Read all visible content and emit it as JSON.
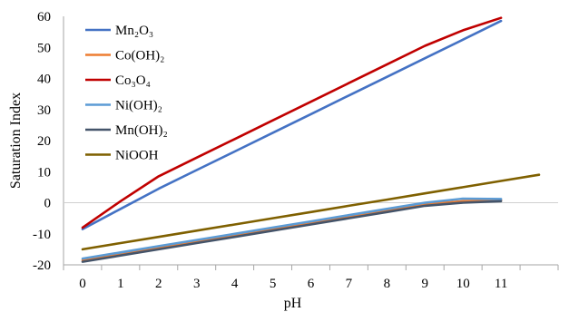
{
  "chart_data": {
    "type": "line",
    "title": "",
    "xlabel": "pH",
    "ylabel": "Saturation Index",
    "x_ticks": [
      "0",
      "1",
      "2",
      "3",
      "4",
      "5",
      "6",
      "7",
      "8",
      "9",
      "10",
      "11"
    ],
    "xlim": [
      -0.5,
      12.5
    ],
    "ylim": [
      -20,
      60
    ],
    "y_ticks": [
      "-20",
      "-10",
      "0",
      "10",
      "20",
      "30",
      "40",
      "50",
      "60"
    ],
    "grid": false,
    "legend_position": "top-left",
    "series": [
      {
        "name": "Mn₂O₃",
        "color": "#4472C4",
        "x": [
          0,
          1,
          2,
          3,
          4,
          5,
          6,
          7,
          8,
          9,
          10,
          11
        ],
        "y": [
          -8.5,
          -2,
          4.5,
          10.5,
          16.5,
          22.5,
          28.5,
          34.5,
          40.5,
          46.5,
          52.5,
          58.5
        ]
      },
      {
        "name": "Co(OH)₂",
        "color": "#ED7D31",
        "x": [
          0,
          1,
          2,
          3,
          4,
          5,
          6,
          7,
          8,
          9,
          10,
          11
        ],
        "y": [
          -18.5,
          -16.5,
          -14.5,
          -12.5,
          -10.5,
          -8.5,
          -6.5,
          -4.5,
          -2.5,
          -0.5,
          0.5,
          0.8
        ]
      },
      {
        "name": "Co₃O₄",
        "color": "#C00000",
        "x": [
          0,
          1,
          2,
          3,
          4,
          5,
          6,
          7,
          8,
          9,
          10,
          11
        ],
        "y": [
          -8,
          0.5,
          8.5,
          14.5,
          20.5,
          26.5,
          32.5,
          38.5,
          44.5,
          50.5,
          55.5,
          59.5
        ]
      },
      {
        "name": "Ni(OH)₂",
        "color": "#5B9BD5",
        "x": [
          0,
          1,
          2,
          3,
          4,
          5,
          6,
          7,
          8,
          9,
          10,
          11
        ],
        "y": [
          -18,
          -16,
          -14,
          -12,
          -10,
          -8,
          -6,
          -4,
          -2,
          0,
          1.3,
          1.2
        ]
      },
      {
        "name": "Mn(OH)₂",
        "color": "#44546A",
        "x": [
          0,
          1,
          2,
          3,
          4,
          5,
          6,
          7,
          8,
          9,
          10,
          11
        ],
        "y": [
          -19,
          -17,
          -15,
          -13,
          -11,
          -9,
          -7,
          -5,
          -3,
          -1,
          0,
          0.5
        ]
      },
      {
        "name": "NiOOH",
        "color": "#7F6000",
        "x": [
          0,
          1,
          2,
          3,
          4,
          5,
          6,
          7,
          8,
          9,
          10,
          11,
          12
        ],
        "y": [
          -15,
          -13,
          -11,
          -9,
          -7,
          -5,
          -3,
          -1,
          1,
          3,
          5,
          7,
          9
        ]
      }
    ]
  }
}
